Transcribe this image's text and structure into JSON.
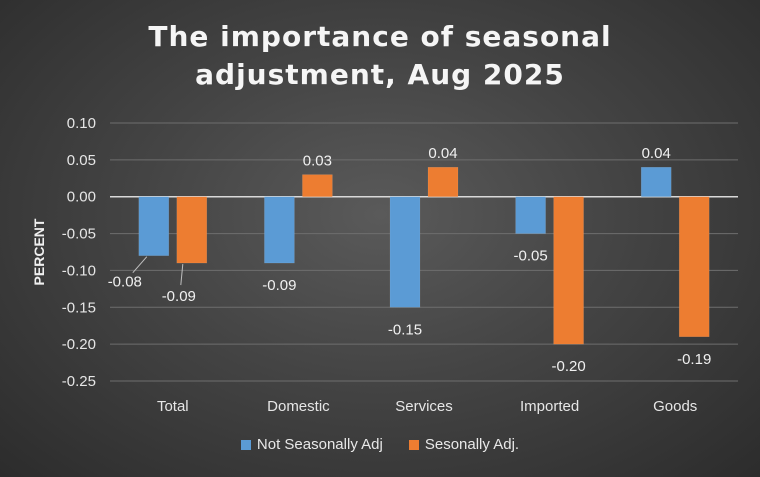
{
  "chart_data": {
    "type": "bar",
    "title_lines": [
      "The importance of seasonal",
      "adjustment, Aug 2025"
    ],
    "xlabel": "",
    "ylabel": "PERCENT",
    "ylim": [
      -0.25,
      0.1
    ],
    "yticks": [
      "0.10",
      "0.05",
      "0.00",
      "-0.05",
      "-0.10",
      "-0.15",
      "-0.20",
      "-0.25"
    ],
    "ytick_values": [
      0.1,
      0.05,
      0.0,
      -0.05,
      -0.1,
      -0.15,
      -0.2,
      -0.25
    ],
    "grid": true,
    "legend_position": "bottom",
    "categories": [
      "Total",
      "Domestic",
      "Services",
      "Imported",
      "Goods"
    ],
    "series": [
      {
        "name": "Not Seasonally Adj",
        "color": "#5b9bd5",
        "values": [
          -0.08,
          -0.09,
          -0.15,
          -0.05,
          0.04
        ],
        "labels": [
          "-0.08",
          "-0.09",
          "-0.15",
          "-0.05",
          "0.04"
        ]
      },
      {
        "name": "Sesonally Adj.",
        "color": "#ed7d31",
        "values": [
          -0.09,
          0.03,
          0.04,
          -0.2,
          -0.19
        ],
        "labels": [
          "-0.09",
          "0.03",
          "0.04",
          "-0.20",
          "-0.19"
        ]
      }
    ]
  }
}
